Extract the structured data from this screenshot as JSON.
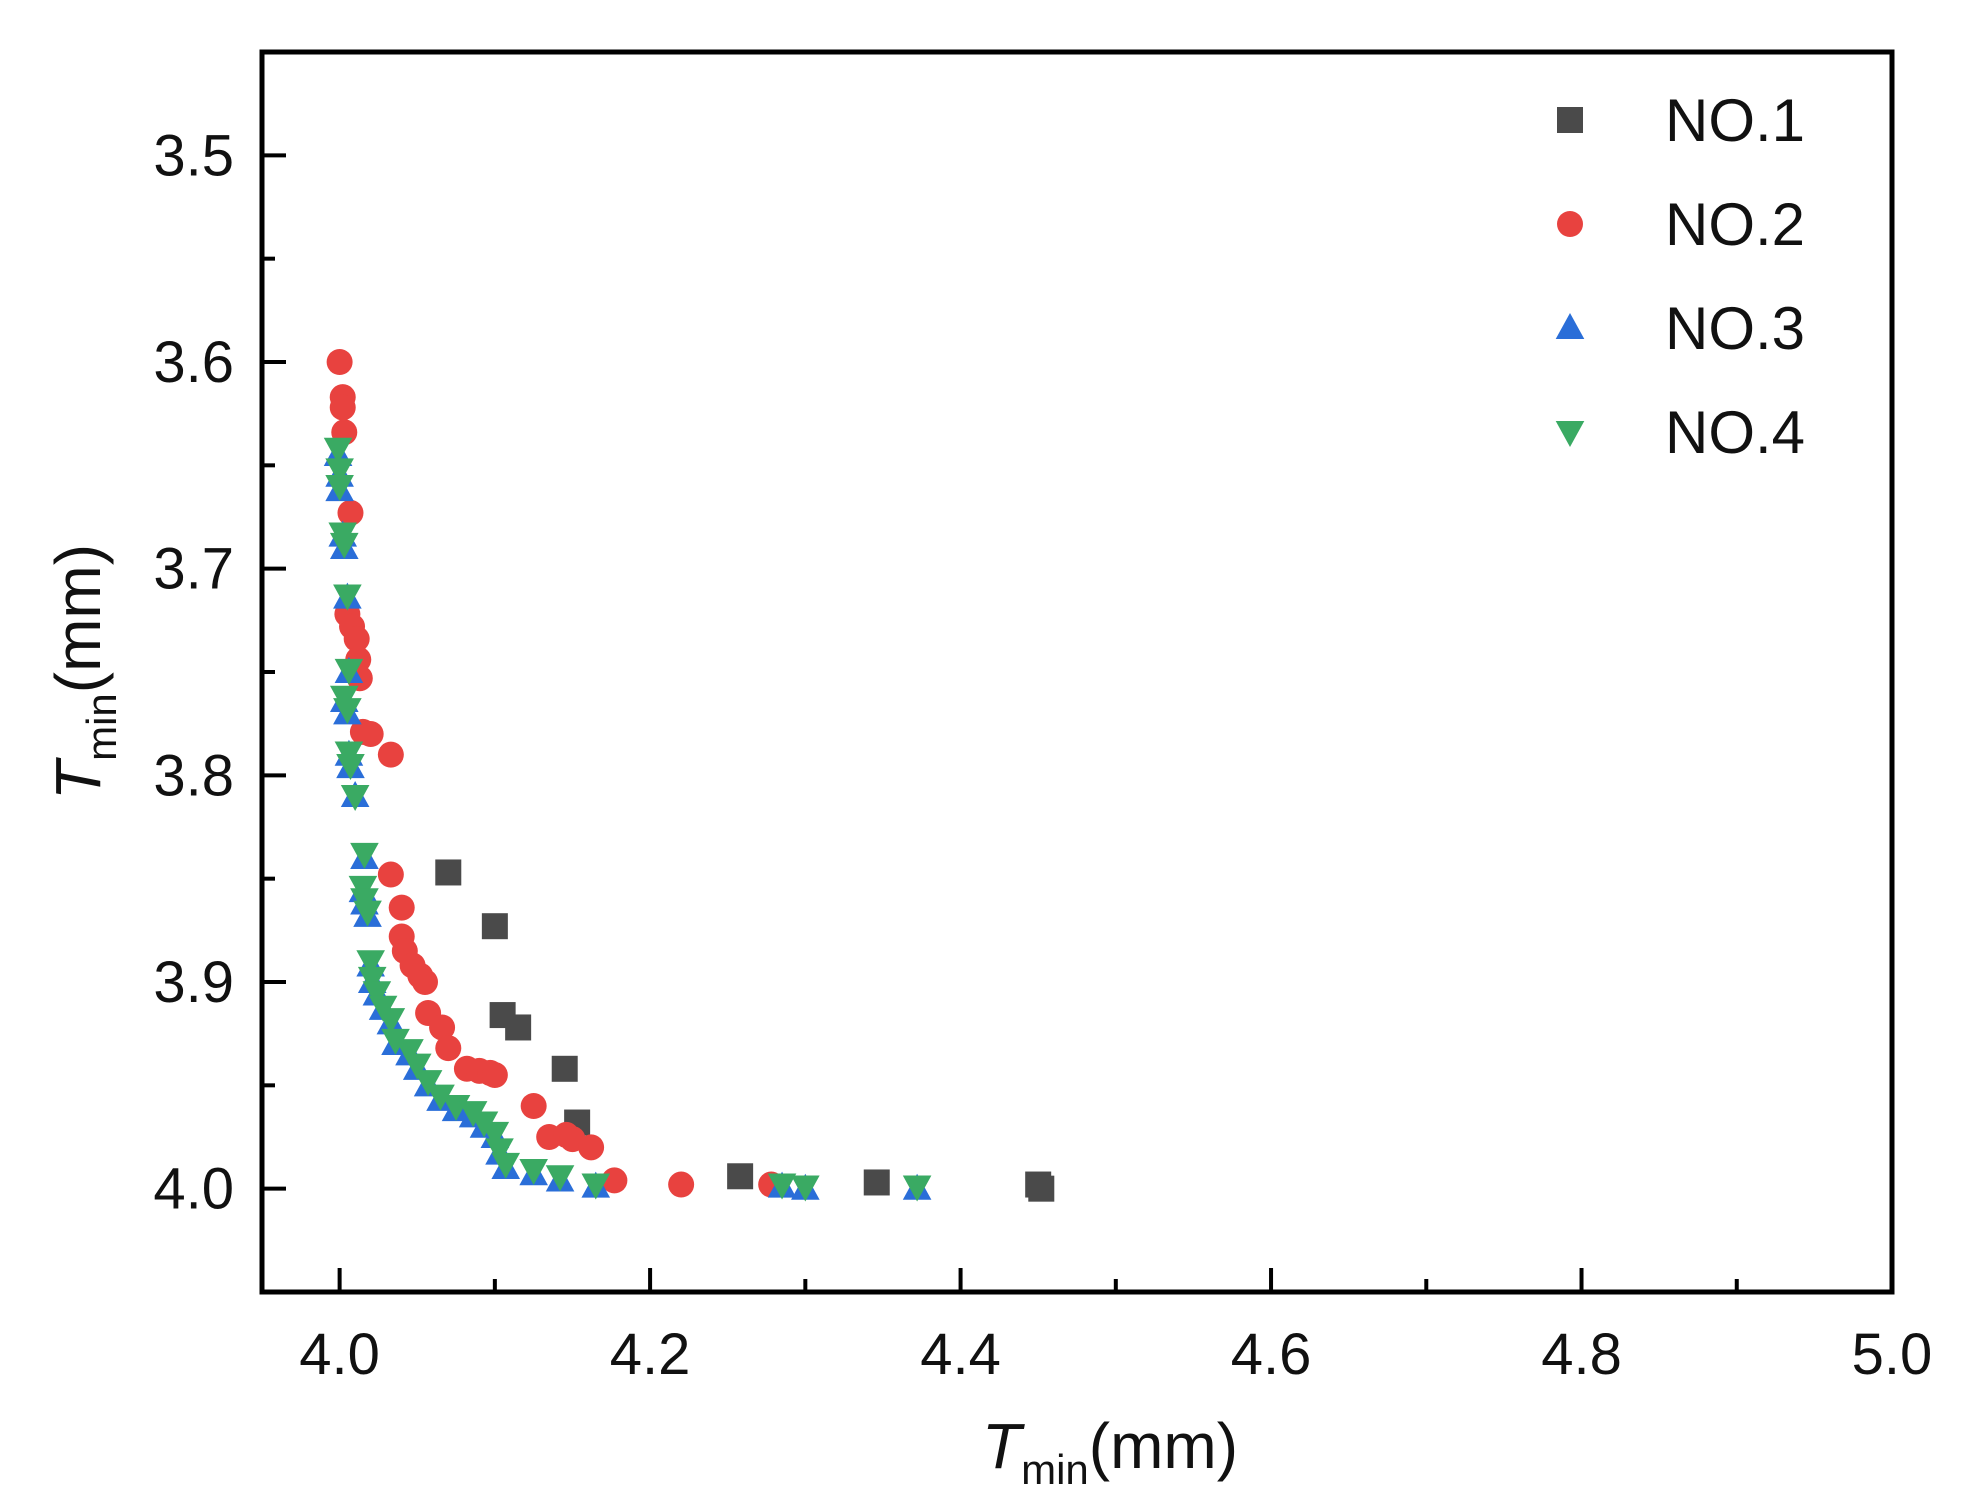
{
  "chart_data": {
    "type": "scatter",
    "xlabel": {
      "symbol": "T",
      "subscript": "min",
      "unit": "(mm)"
    },
    "ylabel": {
      "symbol": "T",
      "subscript": "min",
      "unit": "(mm)"
    },
    "xlim": [
      3.95,
      5.0
    ],
    "ylim": [
      4.05,
      3.45
    ],
    "x_ticks": [
      4.0,
      4.2,
      4.4,
      4.6,
      4.8,
      5.0
    ],
    "x_tick_labels": [
      "4.0",
      "4.2",
      "4.4",
      "4.6",
      "4.8",
      "5.0"
    ],
    "y_ticks": [
      3.5,
      3.6,
      3.7,
      3.8,
      3.9,
      4.0
    ],
    "y_tick_labels": [
      "3.5",
      "3.6",
      "3.7",
      "3.8",
      "3.9",
      "4.0"
    ],
    "legend_position": "top-right",
    "series": [
      {
        "name": "NO.1",
        "marker": "square",
        "color": "#4a4a4a",
        "points": [
          [
            4.07,
            3.847
          ],
          [
            4.1,
            3.873
          ],
          [
            4.105,
            3.916
          ],
          [
            4.115,
            3.922
          ],
          [
            4.145,
            3.942
          ],
          [
            4.153,
            3.968
          ],
          [
            4.258,
            3.994
          ],
          [
            4.346,
            3.997
          ],
          [
            4.45,
            3.998
          ],
          [
            4.452,
            4.0
          ]
        ]
      },
      {
        "name": "NO.2",
        "marker": "circle",
        "color": "#e8423f",
        "points": [
          [
            4.0,
            3.6
          ],
          [
            4.002,
            3.617
          ],
          [
            4.002,
            3.622
          ],
          [
            4.003,
            3.634
          ],
          [
            4.007,
            3.673
          ],
          [
            4.005,
            3.722
          ],
          [
            4.008,
            3.728
          ],
          [
            4.011,
            3.734
          ],
          [
            4.012,
            3.744
          ],
          [
            4.013,
            3.753
          ],
          [
            4.015,
            3.779
          ],
          [
            4.02,
            3.78
          ],
          [
            4.033,
            3.79
          ],
          [
            4.033,
            3.848
          ],
          [
            4.04,
            3.864
          ],
          [
            4.04,
            3.878
          ],
          [
            4.042,
            3.885
          ],
          [
            4.047,
            3.892
          ],
          [
            4.052,
            3.897
          ],
          [
            4.055,
            3.9
          ],
          [
            4.057,
            3.915
          ],
          [
            4.066,
            3.922
          ],
          [
            4.07,
            3.932
          ],
          [
            4.082,
            3.942
          ],
          [
            4.09,
            3.943
          ],
          [
            4.097,
            3.944
          ],
          [
            4.1,
            3.945
          ],
          [
            4.125,
            3.96
          ],
          [
            4.135,
            3.975
          ],
          [
            4.146,
            3.974
          ],
          [
            4.15,
            3.976
          ],
          [
            4.162,
            3.98
          ],
          [
            4.177,
            3.996
          ],
          [
            4.22,
            3.998
          ],
          [
            4.278,
            3.998
          ]
        ]
      },
      {
        "name": "NO.3",
        "marker": "triangle-up",
        "color": "#2a6ed8",
        "points": [
          [
            3.999,
            3.645
          ],
          [
            4.0,
            3.655
          ],
          [
            4.0,
            3.662
          ],
          [
            4.002,
            3.684
          ],
          [
            4.003,
            3.69
          ],
          [
            4.005,
            3.714
          ],
          [
            4.006,
            3.75
          ],
          [
            4.003,
            3.764
          ],
          [
            4.005,
            3.77
          ],
          [
            4.006,
            3.79
          ],
          [
            4.007,
            3.796
          ],
          [
            4.01,
            3.81
          ],
          [
            4.016,
            3.84
          ],
          [
            4.015,
            3.856
          ],
          [
            4.016,
            3.862
          ],
          [
            4.018,
            3.868
          ],
          [
            4.02,
            3.892
          ],
          [
            4.021,
            3.9
          ],
          [
            4.024,
            3.906
          ],
          [
            4.028,
            3.913
          ],
          [
            4.033,
            3.92
          ],
          [
            4.036,
            3.93
          ],
          [
            4.045,
            3.935
          ],
          [
            4.05,
            3.942
          ],
          [
            4.057,
            3.95
          ],
          [
            4.065,
            3.957
          ],
          [
            4.075,
            3.962
          ],
          [
            4.086,
            3.965
          ],
          [
            4.093,
            3.97
          ],
          [
            4.1,
            3.975
          ],
          [
            4.103,
            3.983
          ],
          [
            4.107,
            3.99
          ],
          [
            4.125,
            3.993
          ],
          [
            4.142,
            3.996
          ],
          [
            4.165,
            3.999
          ],
          [
            4.285,
            3.999
          ],
          [
            4.3,
            4.0
          ],
          [
            4.372,
            4.0
          ]
        ]
      },
      {
        "name": "NO.4",
        "marker": "triangle-down",
        "color": "#3aaa63",
        "points": [
          [
            3.999,
            3.642
          ],
          [
            4.0,
            3.652
          ],
          [
            4.0,
            3.66
          ],
          [
            4.002,
            3.683
          ],
          [
            4.003,
            3.688
          ],
          [
            4.005,
            3.713
          ],
          [
            4.006,
            3.749
          ],
          [
            4.003,
            3.762
          ],
          [
            4.005,
            3.768
          ],
          [
            4.006,
            3.789
          ],
          [
            4.007,
            3.795
          ],
          [
            4.01,
            3.81
          ],
          [
            4.016,
            3.838
          ],
          [
            4.015,
            3.854
          ],
          [
            4.016,
            3.86
          ],
          [
            4.018,
            3.866
          ],
          [
            4.02,
            3.89
          ],
          [
            4.021,
            3.898
          ],
          [
            4.024,
            3.905
          ],
          [
            4.028,
            3.912
          ],
          [
            4.033,
            3.918
          ],
          [
            4.036,
            3.928
          ],
          [
            4.045,
            3.933
          ],
          [
            4.05,
            3.94
          ],
          [
            4.057,
            3.948
          ],
          [
            4.065,
            3.955
          ],
          [
            4.075,
            3.96
          ],
          [
            4.086,
            3.963
          ],
          [
            4.093,
            3.968
          ],
          [
            4.1,
            3.973
          ],
          [
            4.103,
            3.981
          ],
          [
            4.107,
            3.988
          ],
          [
            4.125,
            3.991
          ],
          [
            4.142,
            3.994
          ],
          [
            4.165,
            3.998
          ],
          [
            4.285,
            3.998
          ],
          [
            4.3,
            3.999
          ],
          [
            4.372,
            3.999
          ]
        ]
      }
    ]
  }
}
